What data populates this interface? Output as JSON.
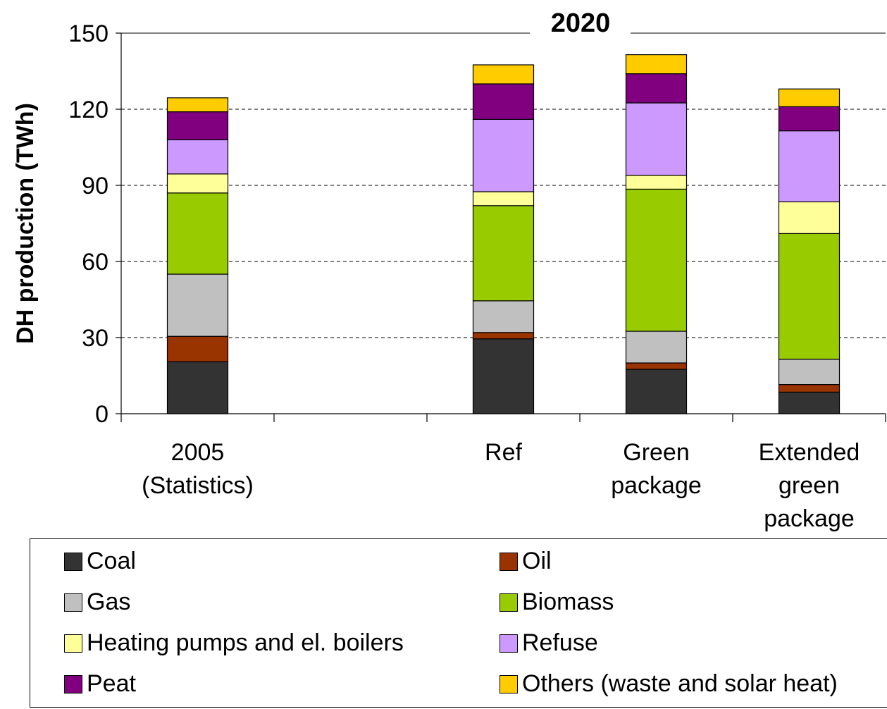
{
  "chart_data": {
    "type": "bar",
    "stacked": true,
    "title": "2020",
    "ylabel": "DH production (TWh)",
    "xlabel": "",
    "ylim": [
      0,
      150
    ],
    "yticks": [
      0,
      30,
      60,
      90,
      120,
      150
    ],
    "grid": true,
    "legend_position": "bottom",
    "categories": [
      [
        "2005",
        "(Statistics)"
      ],
      [],
      [
        "Ref"
      ],
      [
        "Green",
        "package"
      ],
      [
        "Extended",
        "green",
        "package"
      ]
    ],
    "series": [
      {
        "name": "Coal",
        "color": "#333333",
        "values": [
          20.5,
          null,
          29.5,
          17.5,
          8.5
        ]
      },
      {
        "name": "Oil",
        "color": "#993300",
        "values": [
          10.0,
          null,
          2.5,
          2.5,
          3.0
        ]
      },
      {
        "name": "Gas",
        "color": "#c0c0c0",
        "values": [
          24.5,
          null,
          12.5,
          12.5,
          10.0
        ]
      },
      {
        "name": "Biomass",
        "color": "#99cc00",
        "values": [
          32.0,
          null,
          37.5,
          56.0,
          49.5
        ]
      },
      {
        "name": "Heating pumps and el. boilers",
        "color": "#ffff99",
        "values": [
          7.5,
          null,
          5.5,
          5.5,
          12.5
        ]
      },
      {
        "name": "Refuse",
        "color": "#cc99ff",
        "values": [
          13.5,
          null,
          28.5,
          28.5,
          28.0
        ]
      },
      {
        "name": "Peat",
        "color": "#800080",
        "values": [
          11.0,
          null,
          14.0,
          11.5,
          9.5
        ]
      },
      {
        "name": "Others (waste and solar heat)",
        "color": "#ffcc00",
        "values": [
          5.5,
          null,
          7.5,
          7.5,
          7.0
        ]
      }
    ]
  }
}
